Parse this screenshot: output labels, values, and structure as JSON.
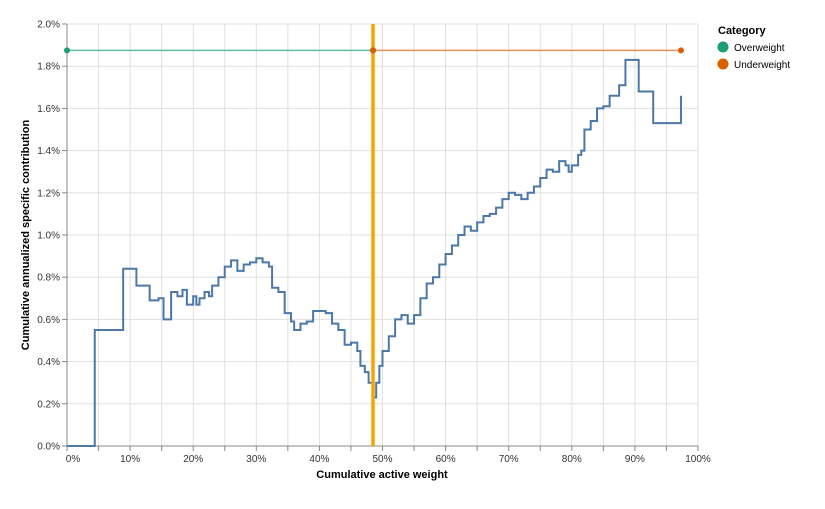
{
  "chart_data": {
    "type": "line",
    "xlabel": "Cumulative active weight",
    "ylabel": "Cumulative annualized specific contribution",
    "xlim": [
      0,
      100
    ],
    "ylim": [
      0,
      2.0
    ],
    "x_ticks": [
      "0%",
      "10%",
      "20%",
      "30%",
      "40%",
      "50%",
      "60%",
      "70%",
      "80%",
      "90%",
      "100%"
    ],
    "y_ticks": [
      "0.0%",
      "0.2%",
      "0.4%",
      "0.6%",
      "0.8%",
      "1.0%",
      "1.2%",
      "1.4%",
      "1.6%",
      "1.8%",
      "2.0%"
    ],
    "grid": true,
    "legend": {
      "title": "Category",
      "placement": "top-right",
      "entries": [
        {
          "name": "Overweight",
          "color": "#1b9e77"
        },
        {
          "name": "Underweight",
          "color": "#d95f02"
        }
      ]
    },
    "vertical_marker": {
      "x": 48.5,
      "color": "#f5a500"
    },
    "category_lines": [
      {
        "name": "Overweight",
        "color": "#5fbf9a",
        "point_color": "#1b9e77",
        "x": [
          0,
          48.5
        ],
        "y": 1.875
      },
      {
        "name": "Underweight",
        "color": "#e8935a",
        "point_color": "#d95f02",
        "x": [
          48.5,
          97.3
        ],
        "y": 1.875
      }
    ],
    "series": [
      {
        "color": "#4c78a8",
        "interpolation": "step-after",
        "x": [
          0,
          4.4,
          8.9,
          11,
          13.1,
          14.5,
          15.3,
          16.5,
          17.5,
          18.3,
          19,
          20,
          20.5,
          21,
          21.8,
          22.5,
          23,
          24,
          25,
          26,
          27,
          28,
          29,
          30,
          31,
          32,
          32.5,
          33.5,
          34.5,
          35.5,
          36,
          37,
          38,
          39,
          41,
          42,
          43,
          44,
          45,
          46,
          46.5,
          47.2,
          47.8,
          48.5,
          49,
          49.5,
          50,
          51,
          52,
          53,
          54,
          55,
          56,
          57,
          58,
          59,
          60,
          61,
          62,
          63,
          64,
          65,
          66,
          67,
          68,
          69,
          70,
          71,
          72,
          73,
          74,
          75,
          76,
          77,
          78,
          79,
          79.5,
          80,
          81,
          81.5,
          82,
          83,
          84,
          85,
          86,
          87.5,
          88.5,
          90.6,
          92.9,
          97.3
        ],
        "y": [
          0,
          0.55,
          0.84,
          0.76,
          0.69,
          0.7,
          0.6,
          0.73,
          0.71,
          0.74,
          0.67,
          0.71,
          0.67,
          0.7,
          0.73,
          0.71,
          0.76,
          0.8,
          0.85,
          0.88,
          0.83,
          0.86,
          0.87,
          0.89,
          0.87,
          0.85,
          0.75,
          0.73,
          0.63,
          0.59,
          0.55,
          0.58,
          0.59,
          0.64,
          0.63,
          0.58,
          0.55,
          0.48,
          0.49,
          0.45,
          0.38,
          0.35,
          0.3,
          0.23,
          0.3,
          0.38,
          0.45,
          0.52,
          0.6,
          0.62,
          0.58,
          0.62,
          0.7,
          0.77,
          0.8,
          0.86,
          0.91,
          0.95,
          1.0,
          1.04,
          1.02,
          1.06,
          1.09,
          1.1,
          1.13,
          1.17,
          1.2,
          1.19,
          1.17,
          1.2,
          1.23,
          1.27,
          1.31,
          1.3,
          1.35,
          1.33,
          1.3,
          1.33,
          1.38,
          1.4,
          1.5,
          1.54,
          1.6,
          1.61,
          1.66,
          1.71,
          1.83,
          1.68,
          1.53,
          1.66
        ]
      }
    ]
  }
}
